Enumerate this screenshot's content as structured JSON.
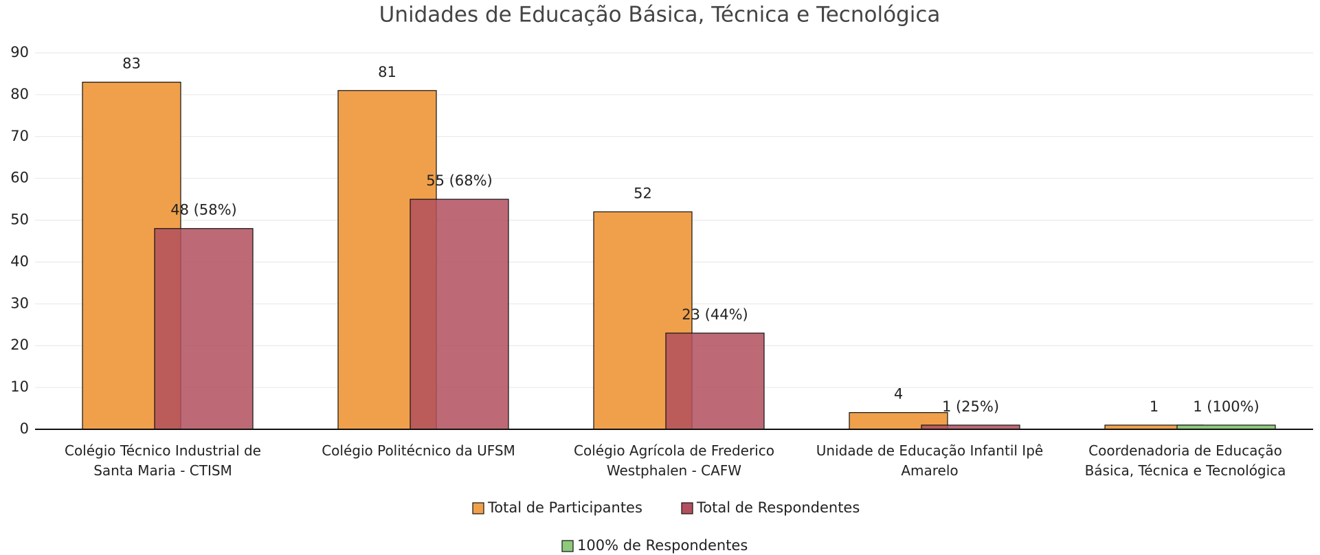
{
  "chart_data": {
    "type": "bar",
    "title": "Unidades de Educação Básica, Técnica e Tecnológica",
    "categories": [
      "Colégio Técnico Industrial de Santa Maria - CTISM",
      "Colégio Politécnico da UFSM",
      "Colégio Agrícola de Frederico Westphalen - CAFW",
      "Unidade de Educação Infantil Ipê Amarelo",
      "Coordenadoria de Educação Básica, Técnica e Tecnológica"
    ],
    "series": [
      {
        "name": "Total de Participantes",
        "color": "#f0a04b",
        "values": [
          83,
          81,
          52,
          4,
          1
        ]
      },
      {
        "name": "Total de Respondentes",
        "color": "#b2505e",
        "values": [
          48,
          55,
          23,
          1,
          null
        ],
        "value_labels": [
          "48 (58%)",
          "55 (68%)",
          "23 (44%)",
          "1 (25%)",
          null
        ]
      },
      {
        "name": "100% de Respondentes",
        "color": "#8fc97c",
        "values": [
          null,
          null,
          null,
          null,
          1
        ],
        "value_labels": [
          null,
          null,
          null,
          null,
          "1 (100%)"
        ]
      }
    ],
    "ylim": [
      0,
      90
    ],
    "yticks": [
      0,
      10,
      20,
      30,
      40,
      50,
      60,
      70,
      80,
      90
    ],
    "grid": true
  }
}
